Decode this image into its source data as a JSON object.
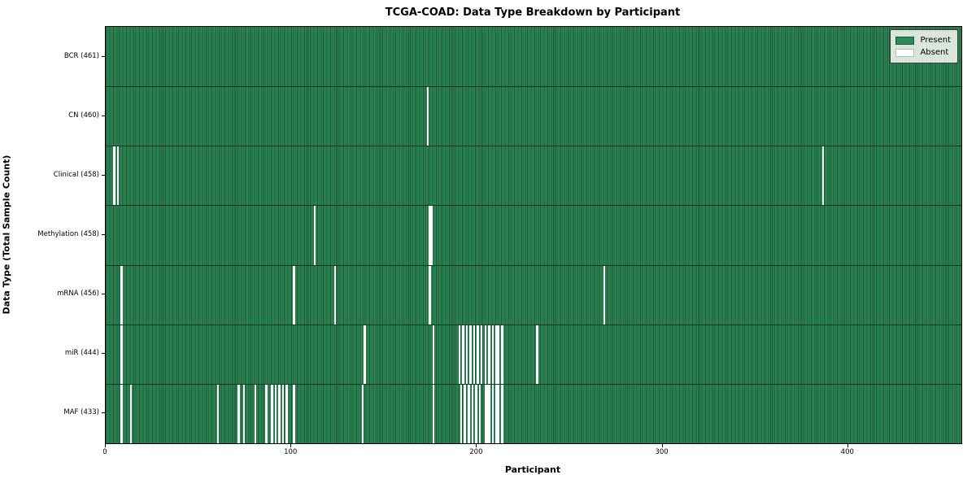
{
  "figure": {
    "background": "#ffffff"
  },
  "chart_data": {
    "type": "heatmap",
    "title": "TCGA-COAD: Data Type Breakdown by Participant",
    "xlabel": "Participant",
    "ylabel": "Data Type (Total Sample Count)",
    "n_participants": 461,
    "xlim": [
      0,
      461
    ],
    "x_ticks": [
      0,
      100,
      200,
      300,
      400
    ],
    "grid": false,
    "legend": {
      "position": "upper right",
      "present_label": "Present",
      "absent_label": "Absent"
    },
    "colors": {
      "present": "#2e8b57",
      "absent": "#ffffff",
      "bar_edge": "#123520",
      "plot_border": "#000000"
    },
    "rows": [
      {
        "label": "BCR (461)",
        "data_type": "BCR",
        "present_count": 461,
        "absent_participants": []
      },
      {
        "label": "CN (460)",
        "data_type": "CN",
        "present_count": 460,
        "absent_participants": [
          173
        ]
      },
      {
        "label": "Clinical (458)",
        "data_type": "Clinical",
        "present_count": 458,
        "absent_participants": [
          4,
          6,
          386
        ]
      },
      {
        "label": "Methylation (458)",
        "data_type": "Methylation",
        "present_count": 458,
        "absent_participants": [
          112,
          174,
          175
        ]
      },
      {
        "label": "mRNA (456)",
        "data_type": "mRNA",
        "present_count": 456,
        "absent_participants": [
          8,
          101,
          123,
          174,
          268
        ]
      },
      {
        "label": "miR (444)",
        "data_type": "miR",
        "present_count": 444,
        "absent_participants": [
          8,
          139,
          176,
          190,
          192,
          194,
          196,
          198,
          200,
          202,
          204,
          206,
          208,
          210,
          211,
          213,
          232
        ]
      },
      {
        "label": "MAF (433)",
        "data_type": "MAF",
        "present_count": 433,
        "absent_participants": [
          8,
          13,
          60,
          71,
          74,
          80,
          86,
          89,
          91,
          93,
          95,
          97,
          101,
          138,
          176,
          191,
          193,
          195,
          197,
          199,
          201,
          204,
          205,
          206,
          208,
          210,
          211,
          213
        ]
      }
    ]
  }
}
